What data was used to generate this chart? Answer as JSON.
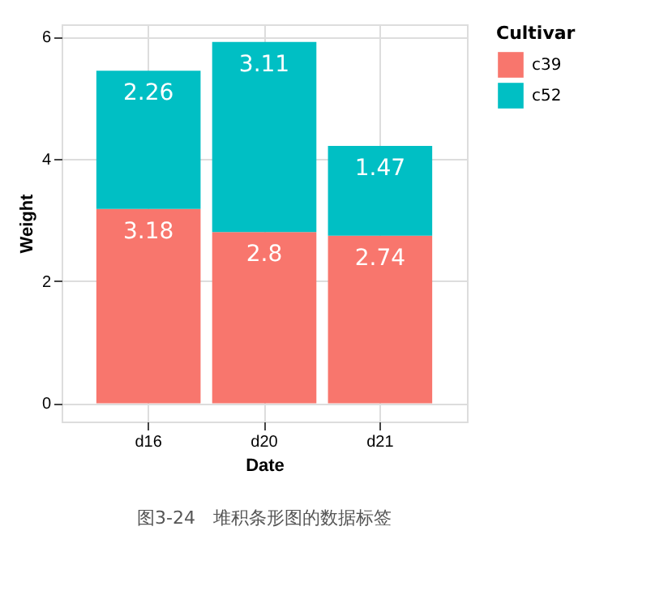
{
  "chart_data": {
    "type": "bar",
    "stacked": true,
    "xlabel": "Date",
    "ylabel": "Weight",
    "legend_title": "Cultivar",
    "categories": [
      "d16",
      "d20",
      "d21"
    ],
    "series": [
      {
        "name": "c39",
        "color": "#f8766d",
        "values": [
          3.18,
          2.8,
          2.74
        ]
      },
      {
        "name": "c52",
        "color": "#00bfc4",
        "values": [
          2.26,
          3.11,
          1.47
        ]
      }
    ],
    "ylim": [
      -0.3,
      6.2
    ],
    "yticks": [
      0,
      2,
      4,
      6
    ],
    "grid": true,
    "legend": "right",
    "data_labels": true,
    "annotations": [
      "图3-24　堆积条形图的数据标签"
    ]
  }
}
